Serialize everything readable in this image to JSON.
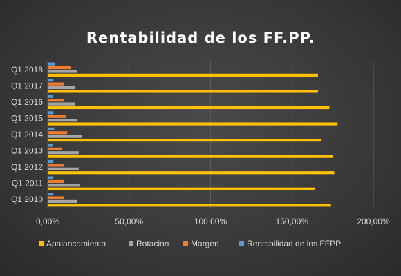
{
  "chart_data": {
    "type": "bar",
    "orientation": "horizontal",
    "title": "Rentabilidad de los FF.PP.",
    "categories": [
      "Q1 2010",
      "Q1 2011",
      "Q1 2012",
      "Q1 2013",
      "Q1 2014",
      "Q1 2015",
      "Q1 2016",
      "Q1 2017",
      "Q1 2018"
    ],
    "series": [
      {
        "name": "Apalancamiento",
        "color": "#ffc000",
        "values": [
          1.74,
          1.64,
          1.76,
          1.75,
          1.68,
          1.78,
          1.73,
          1.66,
          1.66
        ]
      },
      {
        "name": "Rotacion",
        "color": "#a5a5a5",
        "values": [
          0.18,
          0.2,
          0.19,
          0.19,
          0.21,
          0.18,
          0.17,
          0.17,
          0.18
        ]
      },
      {
        "name": "Margen",
        "color": "#ed7d31",
        "values": [
          0.1,
          0.1,
          0.1,
          0.09,
          0.12,
          0.11,
          0.1,
          0.1,
          0.14
        ]
      },
      {
        "name": "Rentabilidad de los FFPP",
        "color": "#5b9bd5",
        "values": [
          0.035,
          0.035,
          0.035,
          0.03,
          0.04,
          0.035,
          0.03,
          0.03,
          0.045
        ]
      }
    ],
    "xlim": [
      0,
      2
    ],
    "x_ticks": [
      "0,00%",
      "50,00%",
      "100,00%",
      "150,00%",
      "200,00%"
    ],
    "grid": true,
    "legend_position": "bottom"
  }
}
